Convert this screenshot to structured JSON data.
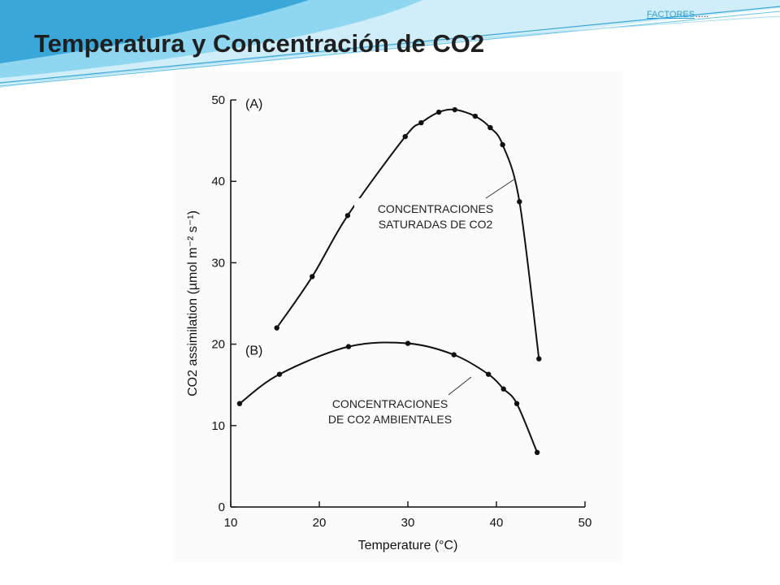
{
  "slide": {
    "title": "Temperatura y Concentración de CO2",
    "link_text": "FACTORES",
    "link_suffix": "…..",
    "accent_colors": [
      "#3aa7d8",
      "#7fd0ee",
      "#cfeef9"
    ]
  },
  "chart_data": {
    "type": "line",
    "xlabel": "Temperature (°C)",
    "ylabel": "CO2 assimilation (µmol m⁻² s⁻¹)",
    "xlim": [
      10,
      50
    ],
    "ylim": [
      0,
      50
    ],
    "x_ticks": [
      10,
      20,
      30,
      40,
      50
    ],
    "y_ticks": [
      0,
      10,
      20,
      30,
      40,
      50
    ],
    "grid": false,
    "series": [
      {
        "name": "(A)",
        "x": [
          15.2,
          19.2,
          23.2,
          29.7,
          31.5,
          33.5,
          35.3,
          37.6,
          39.3,
          40.7,
          42.6,
          44.8
        ],
        "y": [
          22.0,
          28.3,
          35.8,
          45.5,
          47.2,
          48.5,
          48.8,
          48.0,
          46.6,
          44.5,
          37.5,
          18.2
        ]
      },
      {
        "name": "(B)",
        "x": [
          11.0,
          15.5,
          23.3,
          30.0,
          35.2,
          39.1,
          40.8,
          42.3,
          44.6
        ],
        "y": [
          12.7,
          16.3,
          19.7,
          20.1,
          18.7,
          16.3,
          14.5,
          12.7,
          6.7
        ]
      }
    ],
    "annotations": [
      {
        "text_lines": [
          "CONCENTRACIONES",
          "SATURADAS DE CO2"
        ],
        "points_to": "(A)"
      },
      {
        "text_lines": [
          "CONCENTRACIONES",
          "DE CO2 AMBIENTALES"
        ],
        "points_to": "(B)"
      }
    ]
  }
}
